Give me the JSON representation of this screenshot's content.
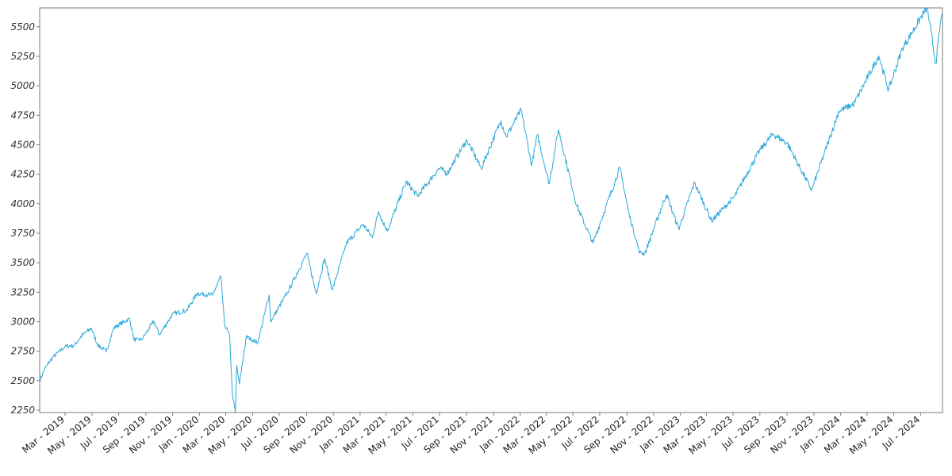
{
  "chart_data": {
    "type": "line",
    "title": "",
    "xlabel": "",
    "ylabel": "",
    "grid": false,
    "legend": "none",
    "xlim": [
      "2019-01-02",
      "2024-08-20"
    ],
    "ylim": [
      2230,
      5660
    ],
    "yticks": [
      2250,
      2500,
      2750,
      3000,
      3250,
      3500,
      3750,
      4000,
      4250,
      4500,
      4750,
      5000,
      5250,
      5500
    ],
    "xticks": [
      {
        "date": "2019-03-01",
        "label": "Mar - 2019"
      },
      {
        "date": "2019-05-01",
        "label": "May - 2019"
      },
      {
        "date": "2019-07-01",
        "label": "Jul - 2019"
      },
      {
        "date": "2019-09-01",
        "label": "Sep - 2019"
      },
      {
        "date": "2019-11-01",
        "label": "Nov - 2019"
      },
      {
        "date": "2020-01-01",
        "label": "Jan - 2020"
      },
      {
        "date": "2020-03-01",
        "label": "Mar - 2020"
      },
      {
        "date": "2020-05-01",
        "label": "May - 2020"
      },
      {
        "date": "2020-07-01",
        "label": "Jul - 2020"
      },
      {
        "date": "2020-09-01",
        "label": "Sep - 2020"
      },
      {
        "date": "2020-11-01",
        "label": "Nov - 2020"
      },
      {
        "date": "2021-01-01",
        "label": "Jan - 2021"
      },
      {
        "date": "2021-03-01",
        "label": "Mar - 2021"
      },
      {
        "date": "2021-05-01",
        "label": "May - 2021"
      },
      {
        "date": "2021-07-01",
        "label": "Jul - 2021"
      },
      {
        "date": "2021-09-01",
        "label": "Sep - 2021"
      },
      {
        "date": "2021-11-01",
        "label": "Nov - 2021"
      },
      {
        "date": "2022-01-01",
        "label": "Jan - 2022"
      },
      {
        "date": "2022-03-01",
        "label": "Mar - 2022"
      },
      {
        "date": "2022-05-01",
        "label": "May - 2022"
      },
      {
        "date": "2022-07-01",
        "label": "Jul - 2022"
      },
      {
        "date": "2022-09-01",
        "label": "Sep - 2022"
      },
      {
        "date": "2022-11-01",
        "label": "Nov - 2022"
      },
      {
        "date": "2023-01-01",
        "label": "Jan - 2023"
      },
      {
        "date": "2023-03-01",
        "label": "Mar - 2023"
      },
      {
        "date": "2023-05-01",
        "label": "May - 2023"
      },
      {
        "date": "2023-07-01",
        "label": "Jul - 2023"
      },
      {
        "date": "2023-09-01",
        "label": "Sep - 2023"
      },
      {
        "date": "2023-11-01",
        "label": "Nov - 2023"
      },
      {
        "date": "2024-01-01",
        "label": "Jan - 2024"
      },
      {
        "date": "2024-03-01",
        "label": "Mar - 2024"
      },
      {
        "date": "2024-05-01",
        "label": "May - 2024"
      },
      {
        "date": "2024-07-01",
        "label": "Jul - 2024"
      }
    ],
    "series": [
      {
        "color": "#29a8d8",
        "points": [
          [
            "2019-01-02",
            2500
          ],
          [
            "2019-01-15",
            2610
          ],
          [
            "2019-02-01",
            2700
          ],
          [
            "2019-03-01",
            2790
          ],
          [
            "2019-03-22",
            2800
          ],
          [
            "2019-04-10",
            2890
          ],
          [
            "2019-04-30",
            2945
          ],
          [
            "2019-05-13",
            2810
          ],
          [
            "2019-06-03",
            2745
          ],
          [
            "2019-06-20",
            2950
          ],
          [
            "2019-07-26",
            3025
          ],
          [
            "2019-08-05",
            2845
          ],
          [
            "2019-08-23",
            2850
          ],
          [
            "2019-09-19",
            3005
          ],
          [
            "2019-10-02",
            2890
          ],
          [
            "2019-11-01",
            3065
          ],
          [
            "2019-12-03",
            3095
          ],
          [
            "2019-12-27",
            3240
          ],
          [
            "2020-01-31",
            3225
          ],
          [
            "2020-02-19",
            3385
          ],
          [
            "2020-02-27",
            2980
          ],
          [
            "2020-03-10",
            2880
          ],
          [
            "2020-03-16",
            2385
          ],
          [
            "2020-03-23",
            2235
          ],
          [
            "2020-03-26",
            2630
          ],
          [
            "2020-04-01",
            2470
          ],
          [
            "2020-04-17",
            2875
          ],
          [
            "2020-05-13",
            2820
          ],
          [
            "2020-06-08",
            3230
          ],
          [
            "2020-06-11",
            3000
          ],
          [
            "2020-07-20",
            3250
          ],
          [
            "2020-09-02",
            3580
          ],
          [
            "2020-09-23",
            3240
          ],
          [
            "2020-10-12",
            3535
          ],
          [
            "2020-10-30",
            3270
          ],
          [
            "2020-12-01",
            3665
          ],
          [
            "2021-01-08",
            3825
          ],
          [
            "2021-01-29",
            3715
          ],
          [
            "2021-02-12",
            3935
          ],
          [
            "2021-03-04",
            3770
          ],
          [
            "2021-04-16",
            4185
          ],
          [
            "2021-05-12",
            4065
          ],
          [
            "2021-06-30",
            4300
          ],
          [
            "2021-07-19",
            4260
          ],
          [
            "2021-08-27",
            4510
          ],
          [
            "2021-09-02",
            4535
          ],
          [
            "2021-10-04",
            4300
          ],
          [
            "2021-11-18",
            4705
          ],
          [
            "2021-11-30",
            4570
          ],
          [
            "2022-01-03",
            4795
          ],
          [
            "2022-01-27",
            4325
          ],
          [
            "2022-02-09",
            4585
          ],
          [
            "2022-03-08",
            4170
          ],
          [
            "2022-03-29",
            4630
          ],
          [
            "2022-05-09",
            3990
          ],
          [
            "2022-06-16",
            3665
          ],
          [
            "2022-07-01",
            3825
          ],
          [
            "2022-08-16",
            4305
          ],
          [
            "2022-09-06",
            3910
          ],
          [
            "2022-09-30",
            3585
          ],
          [
            "2022-10-12",
            3580
          ],
          [
            "2022-11-30",
            4080
          ],
          [
            "2022-12-28",
            3785
          ],
          [
            "2023-02-02",
            4180
          ],
          [
            "2023-03-13",
            3855
          ],
          [
            "2023-05-04",
            4060
          ],
          [
            "2023-06-30",
            4450
          ],
          [
            "2023-07-31",
            4590
          ],
          [
            "2023-09-01",
            4515
          ],
          [
            "2023-10-27",
            4115
          ],
          [
            "2023-12-28",
            4785
          ],
          [
            "2024-01-31",
            4845
          ],
          [
            "2024-03-28",
            5255
          ],
          [
            "2024-04-19",
            4965
          ],
          [
            "2024-05-21",
            5320
          ],
          [
            "2024-07-16",
            5665
          ],
          [
            "2024-08-05",
            5185
          ],
          [
            "2024-08-16",
            5555
          ],
          [
            "2024-08-20",
            5600
          ]
        ]
      }
    ]
  }
}
